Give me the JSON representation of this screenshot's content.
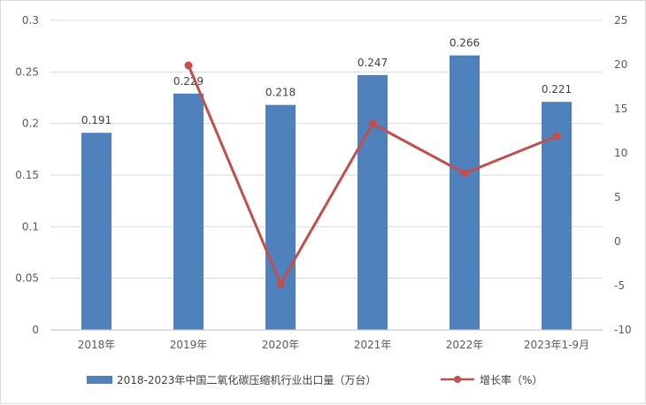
{
  "chart_data": {
    "type": "bar",
    "categories": [
      "2018年",
      "2019年",
      "2020年",
      "2021年",
      "2022年",
      "2023年1-9月"
    ],
    "series": [
      {
        "name": "2018-2023年中国二氧化碳压缩机行业出口量（万台）",
        "type": "bar",
        "axis": "left",
        "color": "#4f81bd",
        "values": [
          0.191,
          0.229,
          0.218,
          0.247,
          0.266,
          0.221
        ],
        "data_labels": [
          "0.191",
          "0.229",
          "0.218",
          "0.247",
          "0.266",
          "0.221"
        ]
      },
      {
        "name": "增长率（%）",
        "type": "line",
        "axis": "right",
        "color": "#c0504d",
        "values": [
          null,
          19.9,
          -4.8,
          13.3,
          7.7,
          11.9
        ]
      }
    ],
    "y_left": {
      "lim": [
        0,
        0.3
      ],
      "ticks": [
        0,
        0.05,
        0.1,
        0.15,
        0.2,
        0.25,
        0.3
      ],
      "tick_labels": [
        "0",
        "0.05",
        "0.1",
        "0.15",
        "0.2",
        "0.25",
        "0.3"
      ]
    },
    "y_right": {
      "lim": [
        -10,
        25
      ],
      "ticks": [
        -10,
        -5,
        0,
        5,
        10,
        15,
        20,
        25
      ],
      "tick_labels": [
        "-10",
        "-5",
        "0",
        "5",
        "10",
        "15",
        "20",
        "25"
      ]
    },
    "grid": true,
    "legend_position": "bottom"
  }
}
